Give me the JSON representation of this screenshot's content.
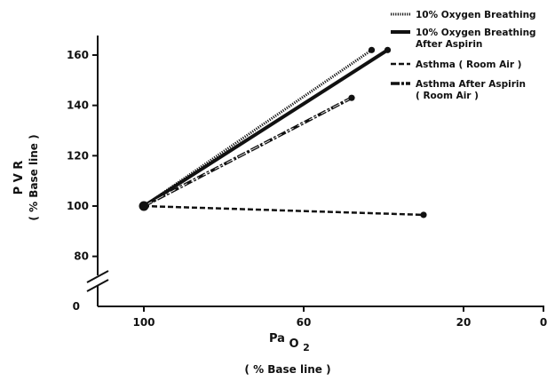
{
  "chart_data": {
    "type": "line",
    "xlim": [
      0,
      110
    ],
    "ylim": [
      70,
      165
    ],
    "x_reversed": true,
    "axis_break": "y",
    "grid": false,
    "legend_placement": "top-right",
    "x_ticks": [
      100,
      60,
      20,
      0
    ],
    "y_ticks": [
      80,
      100,
      120,
      140,
      160
    ],
    "y_axis_zero_label": "0",
    "x_axis_zero_label": "0",
    "ylabel_main": "P V R",
    "ylabel_sub": "( % Base line )",
    "xlabel_main": "Pa",
    "xlabel_subscript": "O",
    "xlabel_subscript2": "2",
    "xlabel_sub": "( % Base line )",
    "series": [
      {
        "name": "10% Oxygen Breathing",
        "style": "dotted",
        "x": [
          100,
          43
        ],
        "y": [
          100,
          162
        ]
      },
      {
        "name": "10% Oxygen Breathing After Aspirin",
        "style": "solid",
        "x": [
          100,
          39
        ],
        "y": [
          100,
          162
        ]
      },
      {
        "name": "Asthma (Room Air)",
        "style": "dashed",
        "x": [
          100,
          30
        ],
        "y": [
          100,
          96.5
        ]
      },
      {
        "name": "Asthma After Aspirin (Room Air)",
        "style": "dash-double",
        "x": [
          100,
          48
        ],
        "y": [
          100,
          143
        ]
      }
    ],
    "legend": [
      {
        "style": "dotted",
        "lines": [
          "10% Oxygen Breathing"
        ]
      },
      {
        "style": "solid",
        "lines": [
          "10% Oxygen Breathing",
          "After Aspirin"
        ]
      },
      {
        "style": "dashed",
        "lines": [
          "Asthma   ( Room Air )"
        ]
      },
      {
        "style": "dash-double",
        "lines": [
          "Asthma  After  Aspirin",
          "( Room Air )"
        ]
      }
    ]
  }
}
